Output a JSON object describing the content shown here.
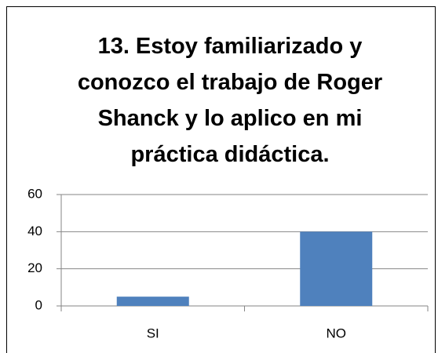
{
  "chart_data": {
    "type": "bar",
    "title": "13. Estoy familiarizado y conozco el trabajo de Roger Shanck y lo aplico en mi práctica didáctica.",
    "categories": [
      "SI",
      "NO"
    ],
    "values": [
      5,
      40
    ],
    "color": "#4f81bd",
    "ylim": [
      0,
      60
    ],
    "yticks": [
      0,
      20,
      40,
      60
    ],
    "grid": true
  }
}
